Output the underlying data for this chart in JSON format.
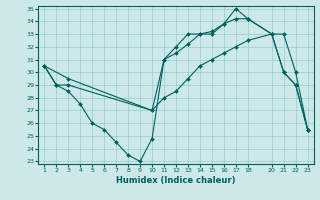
{
  "xlabel": "Humidex (Indice chaleur)",
  "bg_color": "#cce8e8",
  "line_color": "#005f5f",
  "grid_color": "#99cccc",
  "ylim_min": 23,
  "ylim_max": 35,
  "yticks": [
    23,
    24,
    25,
    26,
    27,
    28,
    29,
    30,
    31,
    32,
    33,
    34,
    35
  ],
  "xticks": [
    1,
    2,
    3,
    4,
    5,
    6,
    7,
    8,
    9,
    10,
    11,
    12,
    13,
    14,
    15,
    16,
    17,
    18,
    20,
    21,
    22,
    23
  ],
  "series": [
    {
      "x": [
        1,
        2,
        3,
        4,
        5,
        6,
        7,
        8,
        9,
        10,
        11,
        12,
        13,
        14,
        15,
        16,
        17,
        18,
        20,
        21,
        22,
        23
      ],
      "y": [
        30.5,
        29,
        28.5,
        27.5,
        26,
        25.5,
        24.5,
        23.5,
        23,
        24.8,
        31,
        31.5,
        32.2,
        33,
        33.2,
        33.8,
        35,
        34.2,
        33,
        30,
        29,
        25.5
      ]
    },
    {
      "x": [
        1,
        2,
        3,
        10,
        11,
        12,
        13,
        14,
        15,
        16,
        17,
        18,
        20,
        21,
        22,
        23
      ],
      "y": [
        30.5,
        29,
        29,
        27,
        31,
        32,
        33,
        33,
        33,
        33.8,
        34.2,
        34.2,
        33,
        30,
        29,
        25.5
      ]
    },
    {
      "x": [
        1,
        3,
        10,
        11,
        12,
        13,
        14,
        15,
        16,
        17,
        18,
        20,
        21,
        22,
        23
      ],
      "y": [
        30.5,
        29.5,
        27,
        28,
        28.5,
        29.5,
        30.5,
        31,
        31.5,
        32,
        32.5,
        33,
        33,
        30,
        25.5
      ]
    }
  ]
}
